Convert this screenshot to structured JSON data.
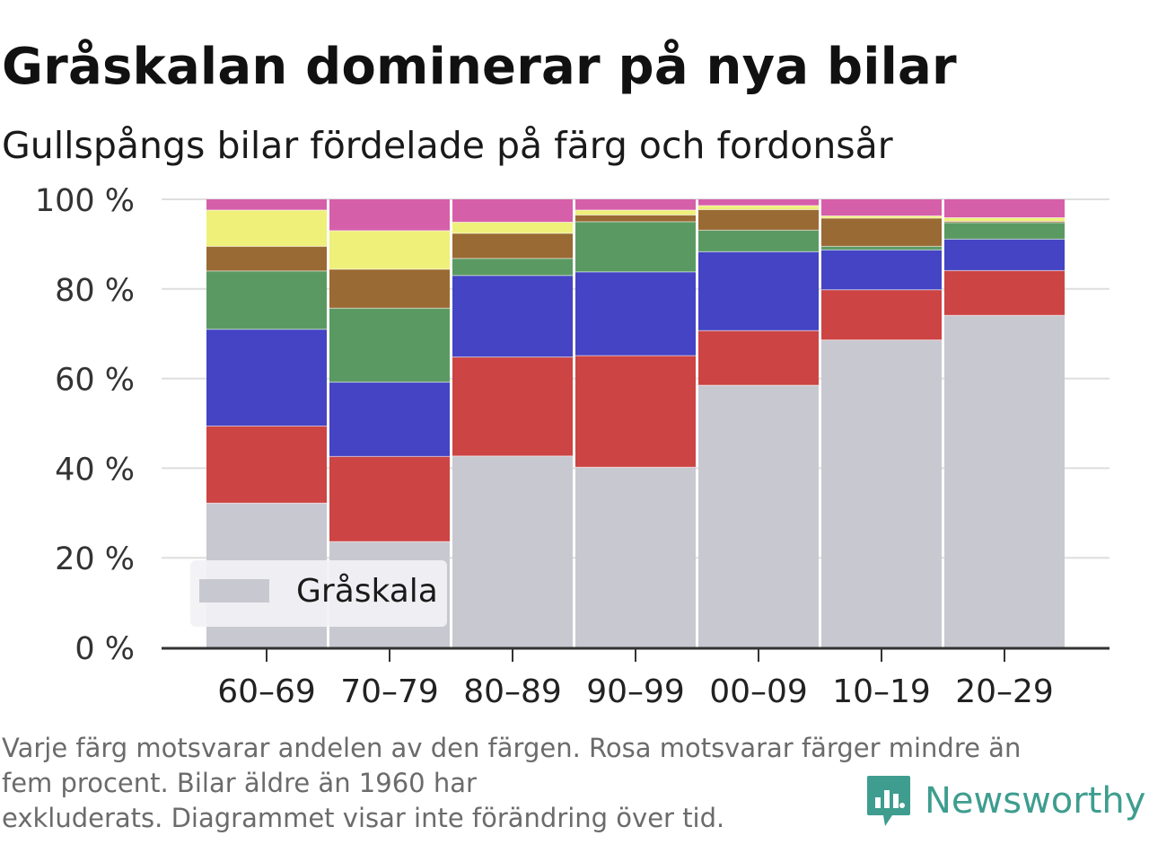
{
  "header": {
    "title": "Gråskalan dominerar på nya bilar",
    "subtitle": "Gullspångs bilar fördelade på färg och fordonsår"
  },
  "chart_data": {
    "type": "bar",
    "stacked": true,
    "categories": [
      "60–69",
      "70–79",
      "80–89",
      "90–99",
      "00–09",
      "10–19",
      "20–29"
    ],
    "series": [
      {
        "name": "Gråskala",
        "color": "#c8c8d0",
        "values": [
          32.2,
          23.6,
          42.7,
          40.2,
          58.5,
          68.6,
          74.1
        ]
      },
      {
        "color": "#cc4444",
        "values": [
          17.2,
          19.0,
          22.1,
          24.9,
          12.2,
          11.2,
          10.0
        ]
      },
      {
        "color": "#4444c4",
        "values": [
          21.6,
          16.6,
          18.2,
          18.7,
          17.6,
          8.9,
          7.0
        ]
      },
      {
        "color": "#5a9a62",
        "values": [
          13.0,
          16.5,
          3.8,
          11.2,
          4.8,
          0.8,
          3.7
        ]
      },
      {
        "color": "#9a6a34",
        "values": [
          5.5,
          8.7,
          5.6,
          1.5,
          4.6,
          6.3,
          0.3
        ]
      },
      {
        "color": "#eef07a",
        "values": [
          8.1,
          8.6,
          2.5,
          1.1,
          0.9,
          0.5,
          0.8
        ]
      },
      {
        "color": "#d65faa",
        "values": [
          2.4,
          7.0,
          5.1,
          2.4,
          1.4,
          3.7,
          4.1
        ]
      }
    ],
    "ylim": [
      0,
      100
    ],
    "yticks": [
      0,
      20,
      40,
      60,
      80,
      100
    ],
    "ytick_labels": [
      "0 %",
      "20 %",
      "40 %",
      "60 %",
      "80 %",
      "100 %"
    ],
    "grid": "horizontal",
    "legend": {
      "placement": "bottom-left",
      "entries": [
        "Gråskala"
      ]
    }
  },
  "footnote": {
    "line1": "Varje färg motsvarar andelen av den färgen. Rosa motsvarar färger mindre än",
    "line2": "fem procent. Bilar äldre än 1960 har",
    "line3": "exkluderats. Diagrammet visar inte förändring över tid."
  },
  "brand": {
    "name": "Newsworthy",
    "icon": "bar-chart-speech-bubble-icon",
    "color": "#3e9d8f"
  }
}
